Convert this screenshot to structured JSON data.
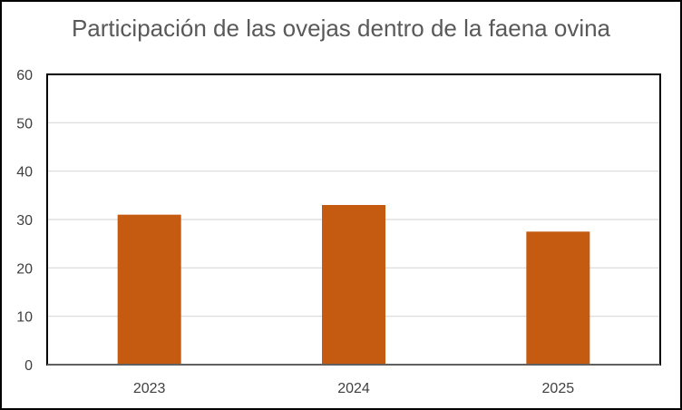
{
  "chart_data": {
    "type": "bar",
    "title": "Participación de las ovejas dentro de la faena ovina",
    "xlabel": "",
    "ylabel": "",
    "categories": [
      "2023",
      "2024",
      "2025"
    ],
    "values": [
      31,
      33,
      27.5
    ],
    "ylim": [
      0,
      60
    ],
    "yticks": [
      "0",
      "10",
      "20",
      "30",
      "40",
      "50",
      "60"
    ],
    "grid": true,
    "legend": "none",
    "colors": {
      "bar": "#C55A11",
      "grid": "#D9D9D9",
      "plot_border": "#000000",
      "title": "#595959",
      "tick_text": "#404040"
    }
  }
}
